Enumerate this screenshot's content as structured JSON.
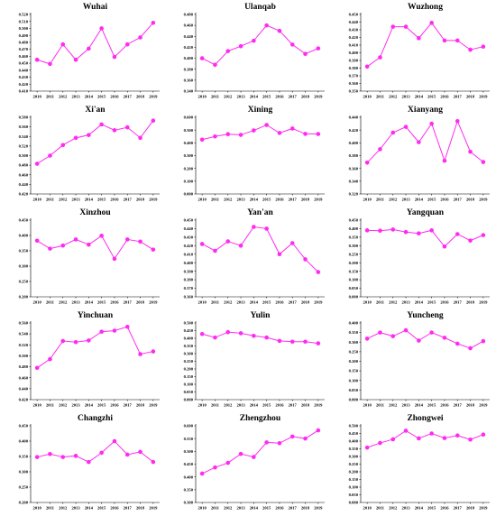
{
  "colors": {
    "series": "#ff2bf0",
    "axis": "#000000",
    "background": "#ffffff"
  },
  "chart_data": [
    {
      "type": "line",
      "title": "Wuhai",
      "x": [
        2010,
        2011,
        2012,
        2013,
        2014,
        2015,
        2016,
        2017,
        2018,
        2019
      ],
      "ylim": [
        0.41,
        0.52
      ],
      "yticks": [
        "0.410",
        "0.420",
        "0.430",
        "0.440",
        "0.450",
        "0.460",
        "0.470",
        "0.480",
        "0.490",
        "0.500",
        "0.510",
        "0.520"
      ],
      "series": [
        {
          "values": [
            0.455,
            0.449,
            0.477,
            0.455,
            0.471,
            0.5,
            0.459,
            0.477,
            0.487,
            0.508
          ]
        }
      ]
    },
    {
      "type": "line",
      "title": "Ulanqab",
      "x": [
        2010,
        2011,
        2012,
        2013,
        2014,
        2015,
        2016,
        2017,
        2018,
        2019
      ],
      "ylim": [
        0.34,
        0.48
      ],
      "yticks": [
        "0.340",
        "0.360",
        "0.380",
        "0.400",
        "0.420",
        "0.440",
        "0.460",
        "0.480"
      ],
      "series": [
        {
          "values": [
            0.4,
            0.388,
            0.413,
            0.422,
            0.432,
            0.46,
            0.45,
            0.425,
            0.408,
            0.418
          ]
        }
      ]
    },
    {
      "type": "line",
      "title": "Wuzhong",
      "x": [
        2010,
        2011,
        2012,
        2013,
        2014,
        2015,
        2016,
        2017,
        2018,
        2019
      ],
      "ylim": [
        0.35,
        0.45
      ],
      "yticks": [
        "0.350",
        "0.360",
        "0.370",
        "0.380",
        "0.390",
        "0.400",
        "0.410",
        "0.420",
        "0.430",
        "0.440",
        "0.450"
      ],
      "series": [
        {
          "values": [
            0.382,
            0.394,
            0.434,
            0.434,
            0.419,
            0.439,
            0.416,
            0.416,
            0.404,
            0.408
          ]
        }
      ]
    },
    {
      "type": "line",
      "title": "Xi'an",
      "x": [
        2010,
        2011,
        2012,
        2013,
        2014,
        2015,
        2016,
        2017,
        2018,
        2019
      ],
      "ylim": [
        0.42,
        0.58
      ],
      "yticks": [
        "0.420",
        "0.440",
        "0.460",
        "0.480",
        "0.500",
        "0.520",
        "0.540",
        "0.560",
        "0.580"
      ],
      "series": [
        {
          "values": [
            0.483,
            0.5,
            0.522,
            0.537,
            0.543,
            0.565,
            0.553,
            0.559,
            0.537,
            0.573
          ]
        }
      ]
    },
    {
      "type": "line",
      "title": "Xining",
      "x": [
        2010,
        2011,
        2012,
        2013,
        2014,
        2015,
        2016,
        2017,
        2018,
        2019
      ],
      "ylim": [
        0.0,
        0.6
      ],
      "yticks": [
        "0.000",
        "0.100",
        "0.200",
        "0.300",
        "0.400",
        "0.500",
        "0.600"
      ],
      "series": [
        {
          "values": [
            0.425,
            0.45,
            0.468,
            0.462,
            0.497,
            0.54,
            0.477,
            0.512,
            0.47,
            0.469
          ]
        }
      ]
    },
    {
      "type": "line",
      "title": "Xianyang",
      "x": [
        2010,
        2011,
        2012,
        2013,
        2014,
        2015,
        2016,
        2017,
        2018,
        2019
      ],
      "ylim": [
        0.32,
        0.44
      ],
      "yticks": [
        "0.320",
        "0.340",
        "0.360",
        "0.380",
        "0.400",
        "0.420",
        "0.440"
      ],
      "series": [
        {
          "values": [
            0.369,
            0.39,
            0.416,
            0.425,
            0.401,
            0.43,
            0.372,
            0.434,
            0.386,
            0.37
          ]
        }
      ]
    },
    {
      "type": "line",
      "title": "Xinzhou",
      "x": [
        2010,
        2011,
        2012,
        2013,
        2014,
        2015,
        2016,
        2017,
        2018,
        2019
      ],
      "ylim": [
        0.2,
        0.45
      ],
      "yticks": [
        "0.200",
        "0.250",
        "0.300",
        "0.350",
        "0.400",
        "0.450"
      ],
      "series": [
        {
          "values": [
            0.383,
            0.357,
            0.367,
            0.387,
            0.37,
            0.399,
            0.324,
            0.387,
            0.38,
            0.354
          ]
        }
      ]
    },
    {
      "type": "line",
      "title": "Yan'an",
      "x": [
        2010,
        2011,
        2012,
        2013,
        2014,
        2015,
        2016,
        2017,
        2018,
        2019
      ],
      "ylim": [
        0.36,
        0.45
      ],
      "yticks": [
        "0.360",
        "0.370",
        "0.380",
        "0.390",
        "0.400",
        "0.410",
        "0.420",
        "0.430",
        "0.440",
        "0.450"
      ],
      "series": [
        {
          "values": [
            0.422,
            0.414,
            0.425,
            0.42,
            0.442,
            0.44,
            0.41,
            0.423,
            0.404,
            0.389
          ]
        }
      ]
    },
    {
      "type": "line",
      "title": "Yangquan",
      "x": [
        2010,
        2011,
        2012,
        2013,
        2014,
        2015,
        2016,
        2017,
        2018,
        2019
      ],
      "ylim": [
        0.0,
        0.45
      ],
      "yticks": [
        "0.000",
        "0.050",
        "0.100",
        "0.150",
        "0.200",
        "0.250",
        "0.300",
        "0.350",
        "0.400",
        "0.450"
      ],
      "series": [
        {
          "values": [
            0.39,
            0.388,
            0.395,
            0.38,
            0.372,
            0.39,
            0.295,
            0.368,
            0.33,
            0.362
          ]
        }
      ]
    },
    {
      "type": "line",
      "title": "Yinchuan",
      "x": [
        2010,
        2011,
        2012,
        2013,
        2014,
        2015,
        2016,
        2017,
        2018,
        2019
      ],
      "ylim": [
        0.42,
        0.56
      ],
      "yticks": [
        "0.420",
        "0.440",
        "0.460",
        "0.480",
        "0.500",
        "0.520",
        "0.540",
        "0.560"
      ],
      "series": [
        {
          "values": [
            0.478,
            0.494,
            0.527,
            0.525,
            0.528,
            0.544,
            0.546,
            0.553,
            0.503,
            0.508
          ]
        }
      ]
    },
    {
      "type": "line",
      "title": "Yulin",
      "x": [
        2010,
        2011,
        2012,
        2013,
        2014,
        2015,
        2016,
        2017,
        2018,
        2019
      ],
      "ylim": [
        0.0,
        0.5
      ],
      "yticks": [
        "0.000",
        "0.050",
        "0.100",
        "0.150",
        "0.200",
        "0.250",
        "0.300",
        "0.350",
        "0.400",
        "0.450",
        "0.500"
      ],
      "series": [
        {
          "values": [
            0.428,
            0.405,
            0.44,
            0.433,
            0.416,
            0.405,
            0.383,
            0.378,
            0.378,
            0.367
          ]
        }
      ]
    },
    {
      "type": "line",
      "title": "Yuncheng",
      "x": [
        2010,
        2011,
        2012,
        2013,
        2014,
        2015,
        2016,
        2017,
        2018,
        2019
      ],
      "ylim": [
        0.0,
        0.4
      ],
      "yticks": [
        "0.000",
        "0.050",
        "0.100",
        "0.150",
        "0.200",
        "0.250",
        "0.300",
        "0.350",
        "0.400"
      ],
      "series": [
        {
          "values": [
            0.318,
            0.35,
            0.331,
            0.362,
            0.308,
            0.35,
            0.323,
            0.292,
            0.268,
            0.305
          ]
        }
      ]
    },
    {
      "type": "line",
      "title": "Changzhi",
      "x": [
        2010,
        2011,
        2012,
        2013,
        2014,
        2015,
        2016,
        2017,
        2018,
        2019
      ],
      "ylim": [
        0.2,
        0.45
      ],
      "yticks": [
        "0.200",
        "0.250",
        "0.300",
        "0.350",
        "0.400",
        "0.450"
      ],
      "series": [
        {
          "values": [
            0.348,
            0.358,
            0.348,
            0.352,
            0.332,
            0.362,
            0.4,
            0.356,
            0.365,
            0.332
          ]
        }
      ]
    },
    {
      "type": "line",
      "title": "Zhengzhou",
      "x": [
        2010,
        2011,
        2012,
        2013,
        2014,
        2015,
        2016,
        2017,
        2018,
        2019
      ],
      "ylim": [
        0.3,
        0.6
      ],
      "yticks": [
        "0.300",
        "0.350",
        "0.400",
        "0.450",
        "0.500",
        "0.550",
        "0.600"
      ],
      "series": [
        {
          "values": [
            0.413,
            0.437,
            0.455,
            0.49,
            0.478,
            0.535,
            0.532,
            0.558,
            0.55,
            0.582
          ]
        }
      ]
    },
    {
      "type": "line",
      "title": "Zhongwei",
      "x": [
        2010,
        2011,
        2012,
        2013,
        2014,
        2015,
        2016,
        2017,
        2018,
        2019
      ],
      "ylim": [
        0.0,
        0.5
      ],
      "yticks": [
        "0.000",
        "0.050",
        "0.100",
        "0.150",
        "0.200",
        "0.250",
        "0.300",
        "0.350",
        "0.400",
        "0.450",
        "0.500"
      ],
      "series": [
        {
          "values": [
            0.358,
            0.388,
            0.412,
            0.468,
            0.418,
            0.45,
            0.42,
            0.437,
            0.41,
            0.443
          ]
        }
      ]
    }
  ]
}
